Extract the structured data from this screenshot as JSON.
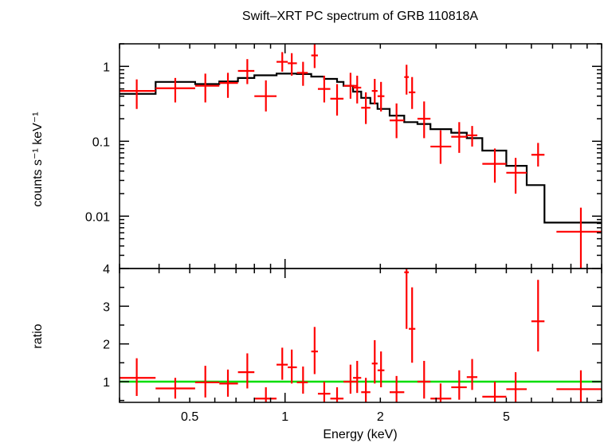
{
  "chart_data": [
    {
      "type": "scatter",
      "title": "Swift–XRT PC spectrum of GRB 110818A",
      "ylabel": "counts s⁻¹ keV⁻¹",
      "xscale": "log",
      "yscale": "log",
      "xlim": [
        0.3,
        10
      ],
      "ylim": [
        0.002,
        2
      ],
      "ytick_labels": [
        "0.01",
        "0.1",
        "1"
      ],
      "ytick_values": [
        0.01,
        0.1,
        1
      ],
      "series": [
        {
          "color": "#ff0000",
          "points": [
            {
              "x": 0.34,
              "xlo": 0.3,
              "xhi": 0.39,
              "y": 0.47,
              "ylo": 0.27,
              "yhi": 0.67
            },
            {
              "x": 0.45,
              "xlo": 0.39,
              "xhi": 0.52,
              "y": 0.51,
              "ylo": 0.33,
              "yhi": 0.7
            },
            {
              "x": 0.56,
              "xlo": 0.52,
              "xhi": 0.62,
              "y": 0.55,
              "ylo": 0.33,
              "yhi": 0.8
            },
            {
              "x": 0.66,
              "xlo": 0.62,
              "xhi": 0.71,
              "y": 0.6,
              "ylo": 0.38,
              "yhi": 0.82
            },
            {
              "x": 0.76,
              "xlo": 0.71,
              "xhi": 0.8,
              "y": 0.87,
              "ylo": 0.58,
              "yhi": 1.25
            },
            {
              "x": 0.87,
              "xlo": 0.8,
              "xhi": 0.94,
              "y": 0.4,
              "ylo": 0.25,
              "yhi": 0.65
            },
            {
              "x": 0.98,
              "xlo": 0.94,
              "xhi": 1.02,
              "y": 1.15,
              "ylo": 0.85,
              "yhi": 1.55
            },
            {
              "x": 1.05,
              "xlo": 1.02,
              "xhi": 1.09,
              "y": 1.1,
              "ylo": 0.75,
              "yhi": 1.5
            },
            {
              "x": 1.14,
              "xlo": 1.09,
              "xhi": 1.18,
              "y": 0.82,
              "ylo": 0.55,
              "yhi": 1.15
            },
            {
              "x": 1.24,
              "xlo": 1.21,
              "xhi": 1.27,
              "y": 1.4,
              "ylo": 0.95,
              "yhi": 2.1
            },
            {
              "x": 1.33,
              "xlo": 1.27,
              "xhi": 1.39,
              "y": 0.5,
              "ylo": 0.33,
              "yhi": 0.75
            },
            {
              "x": 1.46,
              "xlo": 1.39,
              "xhi": 1.53,
              "y": 0.37,
              "ylo": 0.22,
              "yhi": 0.58
            },
            {
              "x": 1.61,
              "xlo": 1.53,
              "xhi": 1.69,
              "y": 0.55,
              "ylo": 0.37,
              "yhi": 0.82
            },
            {
              "x": 1.69,
              "xlo": 1.64,
              "xhi": 1.74,
              "y": 0.52,
              "ylo": 0.32,
              "yhi": 0.75
            },
            {
              "x": 1.8,
              "xlo": 1.74,
              "xhi": 1.86,
              "y": 0.28,
              "ylo": 0.17,
              "yhi": 0.45
            },
            {
              "x": 1.92,
              "xlo": 1.88,
              "xhi": 1.96,
              "y": 0.47,
              "ylo": 0.31,
              "yhi": 0.68
            },
            {
              "x": 2.01,
              "xlo": 1.96,
              "xhi": 2.06,
              "y": 0.4,
              "ylo": 0.25,
              "yhi": 0.62
            },
            {
              "x": 2.25,
              "xlo": 2.14,
              "xhi": 2.38,
              "y": 0.19,
              "ylo": 0.11,
              "yhi": 0.32
            },
            {
              "x": 2.42,
              "xlo": 2.38,
              "xhi": 2.46,
              "y": 0.72,
              "ylo": 0.42,
              "yhi": 1.05
            },
            {
              "x": 2.52,
              "xlo": 2.46,
              "xhi": 2.58,
              "y": 0.45,
              "ylo": 0.27,
              "yhi": 0.72
            },
            {
              "x": 2.75,
              "xlo": 2.62,
              "xhi": 2.88,
              "y": 0.2,
              "ylo": 0.11,
              "yhi": 0.34
            },
            {
              "x": 3.1,
              "xlo": 2.88,
              "xhi": 3.35,
              "y": 0.085,
              "ylo": 0.05,
              "yhi": 0.14
            },
            {
              "x": 3.55,
              "xlo": 3.35,
              "xhi": 3.75,
              "y": 0.115,
              "ylo": 0.07,
              "yhi": 0.18
            },
            {
              "x": 3.9,
              "xlo": 3.75,
              "xhi": 4.05,
              "y": 0.12,
              "ylo": 0.085,
              "yhi": 0.16
            },
            {
              "x": 4.6,
              "xlo": 4.2,
              "xhi": 5.0,
              "y": 0.05,
              "ylo": 0.028,
              "yhi": 0.08
            },
            {
              "x": 5.35,
              "xlo": 5.0,
              "xhi": 5.8,
              "y": 0.038,
              "ylo": 0.02,
              "yhi": 0.06
            },
            {
              "x": 6.3,
              "xlo": 6.0,
              "xhi": 6.6,
              "y": 0.066,
              "ylo": 0.046,
              "yhi": 0.095
            },
            {
              "x": 8.6,
              "xlo": 7.2,
              "xhi": 10.0,
              "y": 0.0062,
              "ylo": 0.0015,
              "yhi": 0.013
            }
          ]
        }
      ],
      "model": {
        "color": "#000000",
        "steps": [
          {
            "x0": 0.3,
            "x1": 0.39,
            "y": 0.43
          },
          {
            "x0": 0.39,
            "x1": 0.52,
            "y": 0.62
          },
          {
            "x0": 0.52,
            "x1": 0.62,
            "y": 0.58
          },
          {
            "x0": 0.62,
            "x1": 0.71,
            "y": 0.63
          },
          {
            "x0": 0.71,
            "x1": 0.8,
            "y": 0.7
          },
          {
            "x0": 0.8,
            "x1": 0.94,
            "y": 0.76
          },
          {
            "x0": 0.94,
            "x1": 1.09,
            "y": 0.8
          },
          {
            "x0": 1.09,
            "x1": 1.21,
            "y": 0.79
          },
          {
            "x0": 1.21,
            "x1": 1.33,
            "y": 0.73
          },
          {
            "x0": 1.33,
            "x1": 1.46,
            "y": 0.68
          },
          {
            "x0": 1.46,
            "x1": 1.53,
            "y": 0.62
          },
          {
            "x0": 1.53,
            "x1": 1.64,
            "y": 0.55
          },
          {
            "x0": 1.64,
            "x1": 1.74,
            "y": 0.46
          },
          {
            "x0": 1.74,
            "x1": 1.86,
            "y": 0.38
          },
          {
            "x0": 1.86,
            "x1": 1.96,
            "y": 0.32
          },
          {
            "x0": 1.96,
            "x1": 2.14,
            "y": 0.27
          },
          {
            "x0": 2.14,
            "x1": 2.38,
            "y": 0.22
          },
          {
            "x0": 2.38,
            "x1": 2.62,
            "y": 0.18
          },
          {
            "x0": 2.62,
            "x1": 2.88,
            "y": 0.17
          },
          {
            "x0": 2.88,
            "x1": 3.35,
            "y": 0.145
          },
          {
            "x0": 3.35,
            "x1": 3.75,
            "y": 0.13
          },
          {
            "x0": 3.75,
            "x1": 4.2,
            "y": 0.11
          },
          {
            "x0": 4.2,
            "x1": 5.0,
            "y": 0.075
          },
          {
            "x0": 5.0,
            "x1": 5.8,
            "y": 0.047
          },
          {
            "x0": 5.8,
            "x1": 6.6,
            "y": 0.026
          },
          {
            "x0": 6.6,
            "x1": 10.0,
            "y": 0.0082
          }
        ]
      }
    },
    {
      "type": "scatter",
      "xlabel": "Energy (keV)",
      "ylabel": "ratio",
      "xscale": "log",
      "xlim": [
        0.3,
        10
      ],
      "ylim": [
        0.45,
        4.0
      ],
      "ytick_labels": [
        "1",
        "2",
        "3",
        "4"
      ],
      "ytick_values": [
        1,
        2,
        3,
        4
      ],
      "xtick_labels": [
        "0.5",
        "1",
        "2",
        "5"
      ],
      "xtick_values": [
        0.5,
        1,
        2,
        5
      ],
      "reference_line": {
        "y": 1.0,
        "color": "#00dd00"
      },
      "series": [
        {
          "color": "#ff0000",
          "points": [
            {
              "x": 0.34,
              "xlo": 0.3,
              "xhi": 0.39,
              "y": 1.1,
              "ylo": 0.62,
              "yhi": 1.62
            },
            {
              "x": 0.45,
              "xlo": 0.39,
              "xhi": 0.52,
              "y": 0.82,
              "ylo": 0.55,
              "yhi": 1.1
            },
            {
              "x": 0.56,
              "xlo": 0.52,
              "xhi": 0.62,
              "y": 0.98,
              "ylo": 0.58,
              "yhi": 1.42
            },
            {
              "x": 0.66,
              "xlo": 0.62,
              "xhi": 0.71,
              "y": 0.95,
              "ylo": 0.6,
              "yhi": 1.32
            },
            {
              "x": 0.76,
              "xlo": 0.71,
              "xhi": 0.8,
              "y": 1.25,
              "ylo": 0.82,
              "yhi": 1.75
            },
            {
              "x": 0.87,
              "xlo": 0.8,
              "xhi": 0.94,
              "y": 0.55,
              "ylo": 0.45,
              "yhi": 0.85
            },
            {
              "x": 0.98,
              "xlo": 0.94,
              "xhi": 1.02,
              "y": 1.45,
              "ylo": 1.05,
              "yhi": 1.9
            },
            {
              "x": 1.05,
              "xlo": 1.02,
              "xhi": 1.09,
              "y": 1.38,
              "ylo": 0.95,
              "yhi": 1.85
            },
            {
              "x": 1.14,
              "xlo": 1.09,
              "xhi": 1.18,
              "y": 0.98,
              "ylo": 0.68,
              "yhi": 1.4
            },
            {
              "x": 1.24,
              "xlo": 1.21,
              "xhi": 1.27,
              "y": 1.8,
              "ylo": 1.2,
              "yhi": 2.45
            },
            {
              "x": 1.33,
              "xlo": 1.27,
              "xhi": 1.39,
              "y": 0.68,
              "ylo": 0.45,
              "yhi": 1.0
            },
            {
              "x": 1.46,
              "xlo": 1.39,
              "xhi": 1.53,
              "y": 0.55,
              "ylo": 0.45,
              "yhi": 0.85
            },
            {
              "x": 1.61,
              "xlo": 1.53,
              "xhi": 1.69,
              "y": 1.0,
              "ylo": 0.68,
              "yhi": 1.45
            },
            {
              "x": 1.69,
              "xlo": 1.64,
              "xhi": 1.74,
              "y": 1.1,
              "ylo": 0.7,
              "yhi": 1.55
            },
            {
              "x": 1.8,
              "xlo": 1.74,
              "xhi": 1.86,
              "y": 0.72,
              "ylo": 0.45,
              "yhi": 1.1
            },
            {
              "x": 1.92,
              "xlo": 1.88,
              "xhi": 1.96,
              "y": 1.48,
              "ylo": 0.95,
              "yhi": 2.1
            },
            {
              "x": 2.01,
              "xlo": 1.96,
              "xhi": 2.06,
              "y": 1.3,
              "ylo": 0.85,
              "yhi": 1.8
            },
            {
              "x": 2.25,
              "xlo": 2.14,
              "xhi": 2.38,
              "y": 0.72,
              "ylo": 0.45,
              "yhi": 1.15
            },
            {
              "x": 2.42,
              "xlo": 2.38,
              "xhi": 2.46,
              "y": 3.9,
              "ylo": 2.4,
              "yhi": 4.0
            },
            {
              "x": 2.52,
              "xlo": 2.46,
              "xhi": 2.58,
              "y": 2.4,
              "ylo": 1.5,
              "yhi": 3.5
            },
            {
              "x": 2.75,
              "xlo": 2.62,
              "xhi": 2.88,
              "y": 1.0,
              "ylo": 0.55,
              "yhi": 1.55
            },
            {
              "x": 3.1,
              "xlo": 2.88,
              "xhi": 3.35,
              "y": 0.55,
              "ylo": 0.45,
              "yhi": 0.95
            },
            {
              "x": 3.55,
              "xlo": 3.35,
              "xhi": 3.75,
              "y": 0.85,
              "ylo": 0.52,
              "yhi": 1.3
            },
            {
              "x": 3.9,
              "xlo": 3.75,
              "xhi": 4.05,
              "y": 1.12,
              "ylo": 0.78,
              "yhi": 1.6
            },
            {
              "x": 4.6,
              "xlo": 4.2,
              "xhi": 5.0,
              "y": 0.6,
              "ylo": 0.45,
              "yhi": 1.0
            },
            {
              "x": 5.35,
              "xlo": 5.0,
              "xhi": 5.8,
              "y": 0.8,
              "ylo": 0.45,
              "yhi": 1.25
            },
            {
              "x": 6.3,
              "xlo": 6.0,
              "xhi": 6.6,
              "y": 2.6,
              "ylo": 1.8,
              "yhi": 3.7
            },
            {
              "x": 8.6,
              "xlo": 7.2,
              "xhi": 10.0,
              "y": 0.8,
              "ylo": 0.45,
              "yhi": 1.3
            }
          ]
        }
      ]
    }
  ]
}
